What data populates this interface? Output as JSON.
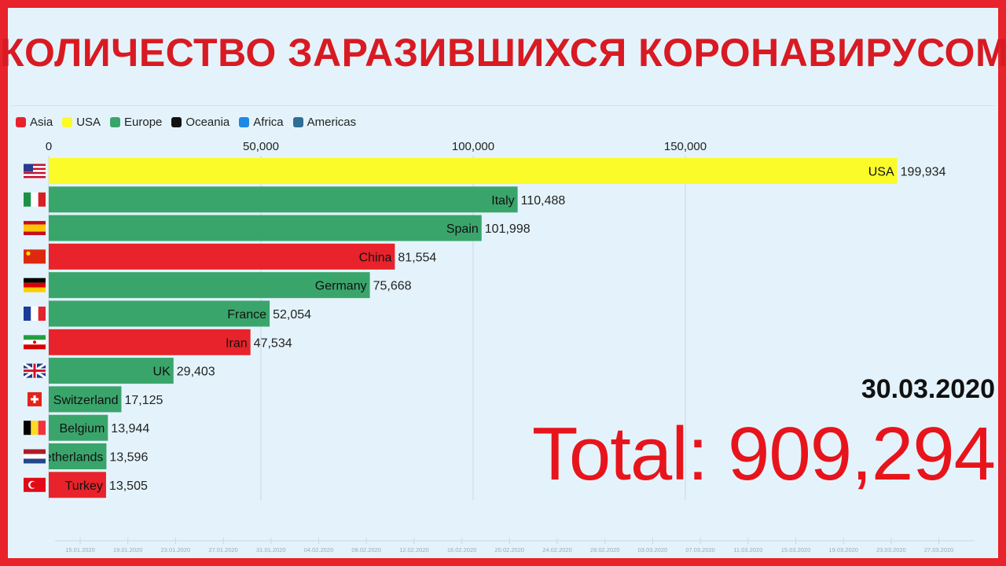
{
  "header": {
    "title": "КОЛИЧЕСТВО ЗАРАЗИВШИХСЯ КОРОНАВИРУСОМ"
  },
  "legend": [
    {
      "label": "Asia",
      "color": "#e8232b"
    },
    {
      "label": "USA",
      "color": "#fbfb2a"
    },
    {
      "label": "Europe",
      "color": "#3aa56b"
    },
    {
      "label": "Oceania",
      "color": "#111111"
    },
    {
      "label": "Africa",
      "color": "#1e88e5"
    },
    {
      "label": "Americas",
      "color": "#2e6f96"
    }
  ],
  "chart_data": {
    "type": "bar",
    "orientation": "horizontal",
    "xlim": [
      0,
      200000
    ],
    "x_ticks": [
      "0",
      "50,000",
      "100,000",
      "150,000"
    ],
    "x_tick_values": [
      0,
      50000,
      100000,
      150000
    ],
    "bars": [
      {
        "country": "USA",
        "value": 199934,
        "value_label": "199,934",
        "region": "USA",
        "flag": "us-flag"
      },
      {
        "country": "Italy",
        "value": 110488,
        "value_label": "110,488",
        "region": "Europe",
        "flag": "it-flag"
      },
      {
        "country": "Spain",
        "value": 101998,
        "value_label": "101,998",
        "region": "Europe",
        "flag": "es-flag"
      },
      {
        "country": "China",
        "value": 81554,
        "value_label": "81,554",
        "region": "Asia",
        "flag": "cn-flag"
      },
      {
        "country": "Germany",
        "value": 75668,
        "value_label": "75,668",
        "region": "Europe",
        "flag": "de-flag"
      },
      {
        "country": "France",
        "value": 52054,
        "value_label": "52,054",
        "region": "Europe",
        "flag": "fr-flag"
      },
      {
        "country": "Iran",
        "value": 47534,
        "value_label": "47,534",
        "region": "Asia",
        "flag": "ir-flag"
      },
      {
        "country": "UK",
        "value": 29403,
        "value_label": "29,403",
        "region": "Europe",
        "flag": "gb-flag"
      },
      {
        "country": "Switzerland",
        "value": 17125,
        "value_label": "17,125",
        "region": "Europe",
        "flag": "ch-flag"
      },
      {
        "country": "Belgium",
        "value": 13944,
        "value_label": "13,944",
        "region": "Europe",
        "flag": "be-flag"
      },
      {
        "country": "Netherlands",
        "value": 13596,
        "value_label": "13,596",
        "region": "Europe",
        "flag": "nl-flag"
      },
      {
        "country": "Turkey",
        "value": 13505,
        "value_label": "13,505",
        "region": "Asia",
        "flag": "tr-flag"
      }
    ],
    "grid": true
  },
  "date": "30.03.2020",
  "total": "Total: 909,294",
  "timeline": [
    "15.01.2020",
    "19.01.2020",
    "23.01.2020",
    "27.01.2020",
    "31.01.2020",
    "04.02.2020",
    "08.02.2020",
    "12.02.2020",
    "16.02.2020",
    "20.02.2020",
    "24.02.2020",
    "28.02.2020",
    "03.03.2020",
    "07.03.2020",
    "11.03.2020",
    "15.03.2020",
    "19.03.2020",
    "23.03.2020",
    "27.03.2020"
  ]
}
